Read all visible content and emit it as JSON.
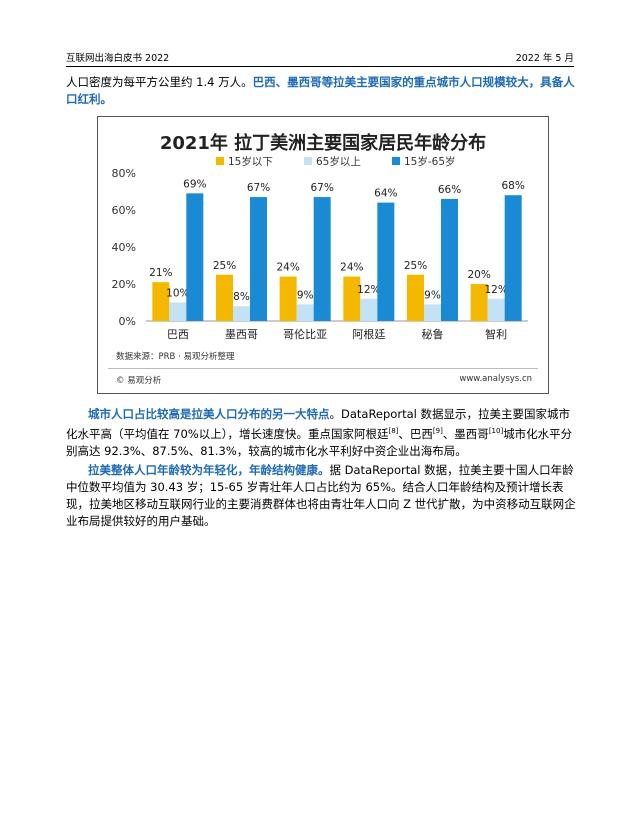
{
  "header": {
    "left": "互联网出海白皮书 2022",
    "right": "2022 年 5 月"
  },
  "intro": {
    "plain": "人口密度为每平方公里约 1.4 万人。",
    "highlight": "巴西、墨西哥等拉美主要国家的重点城市人口规模较大，具备人口红利。"
  },
  "chart_data": {
    "type": "bar",
    "title": "2021年 拉丁美洲主要国家居民年龄分布",
    "categories": [
      "巴西",
      "墨西哥",
      "哥伦比亚",
      "阿根廷",
      "秘鲁",
      "智利"
    ],
    "series": [
      {
        "name": "15岁以下",
        "color": "#f5b800",
        "values": [
          21,
          25,
          24,
          24,
          25,
          20
        ]
      },
      {
        "name": "65岁以上",
        "color": "#c4e2f6",
        "values": [
          10,
          8,
          9,
          12,
          9,
          12
        ]
      },
      {
        "name": "15岁-65岁",
        "color": "#1a8ad4",
        "values": [
          69,
          67,
          67,
          64,
          66,
          68
        ]
      }
    ],
    "yticks": [
      "0%",
      "20%",
      "40%",
      "60%",
      "80%"
    ],
    "ylim": [
      0,
      80
    ],
    "grid": false,
    "legend_position": "top",
    "source": "数据来源：PRB · 易观分析整理",
    "logo": "易观分析",
    "site": "www.analysys.cn"
  },
  "para2": {
    "highlight": "城市人口占比较高是拉美人口分布的另一大特点",
    "text_a": "。DataReportal 数据显示，拉美主要国家城市化水平高（平均值在 70%以上），增长速度快。重点国家阿根廷",
    "sup1": "[8]",
    "text_b": "、巴西",
    "sup2": "[9]",
    "text_c": "、墨西哥",
    "sup3": "[10]",
    "text_d": "城市化水平分别高达 92.3%、87.5%、81.3%，较高的城市化水平利好中资企业出海布局。"
  },
  "para3": {
    "highlight": "拉美整体人口年龄较为年轻化，年龄结构健康。",
    "text": "据 DataReportal 数据，拉美主要十国人口年龄中位数平均值为 30.43 岁；15-65 岁青壮年人口占比约为 65%。结合人口年龄结构及预计增长表现，拉美地区移动互联网行业的主要消费群体也将由青壮年人口向 Z 世代扩散，为中资移动互联网企业布局提供较好的用户基础。"
  }
}
